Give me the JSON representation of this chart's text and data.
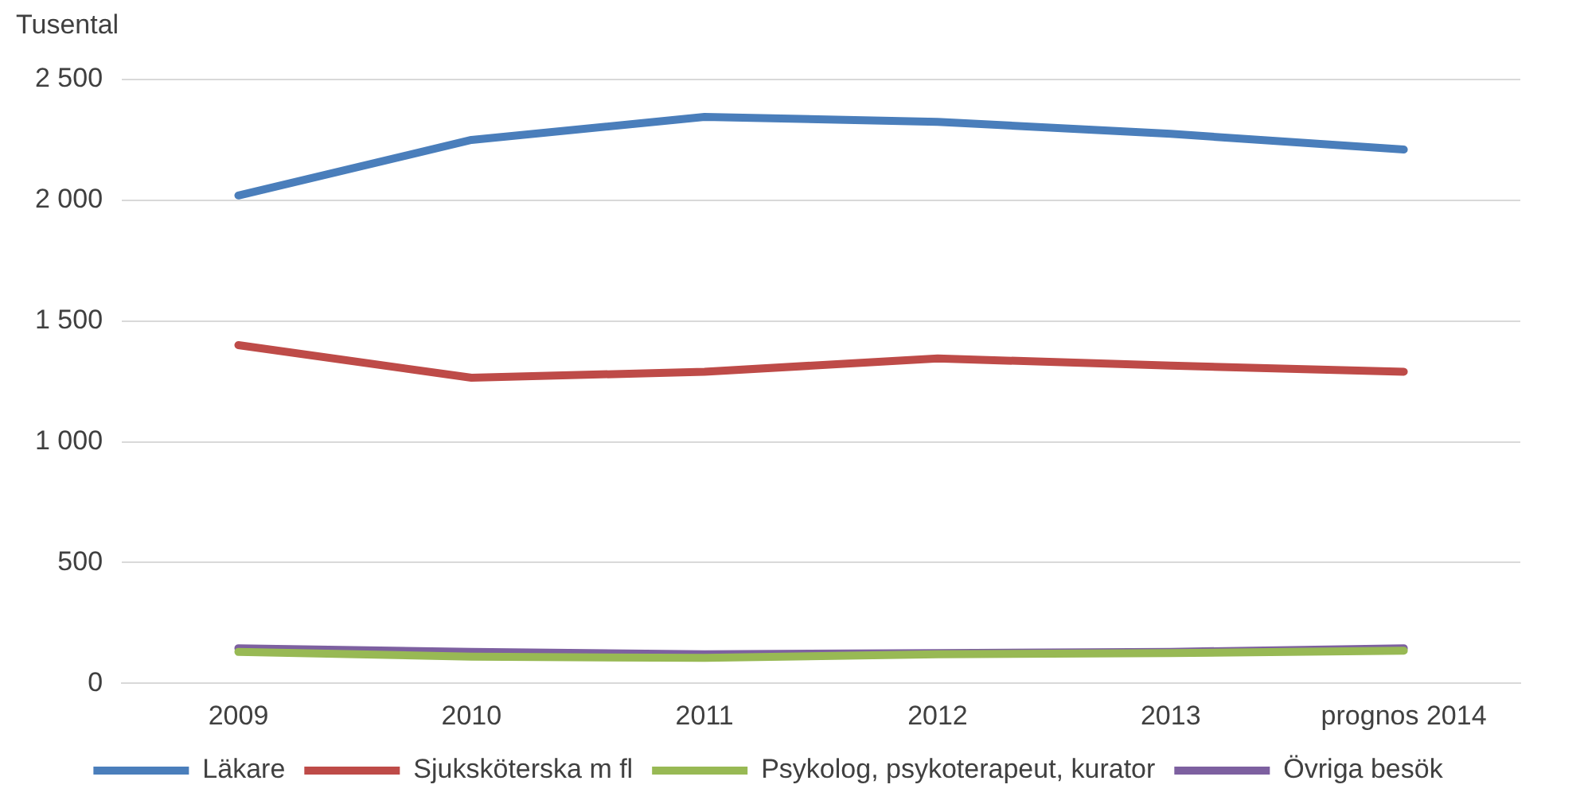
{
  "chart_data": {
    "type": "line",
    "ylabel": "Tusental",
    "categories": [
      "2009",
      "2010",
      "2011",
      "2012",
      "2013",
      "prognos 2014"
    ],
    "series": [
      {
        "name": "Läkare",
        "color": "#4a7ebb",
        "values": [
          2020,
          2250,
          2345,
          2325,
          2275,
          2210
        ]
      },
      {
        "name": "Sjuksköterska m fl",
        "color": "#be4b48",
        "values": [
          1400,
          1265,
          1290,
          1345,
          1315,
          1290
        ]
      },
      {
        "name": "Psykolog, psykoterapeut, kurator",
        "color": "#98b954",
        "values": [
          130,
          110,
          105,
          120,
          125,
          135
        ]
      },
      {
        "name": "Övriga besök",
        "color": "#7d60a0",
        "values": [
          145,
          130,
          120,
          125,
          130,
          145
        ]
      }
    ],
    "ylim": [
      0,
      2500
    ],
    "yticks": [
      {
        "value": 0,
        "label": "0"
      },
      {
        "value": 500,
        "label": "500"
      },
      {
        "value": 1000,
        "label": "1 000"
      },
      {
        "value": 1500,
        "label": "1 500"
      },
      {
        "value": 2000,
        "label": "2 000"
      },
      {
        "value": 2500,
        "label": "2 500"
      }
    ],
    "grid": "y",
    "legend": "bottom",
    "marker": "none",
    "line_style": "solid"
  }
}
